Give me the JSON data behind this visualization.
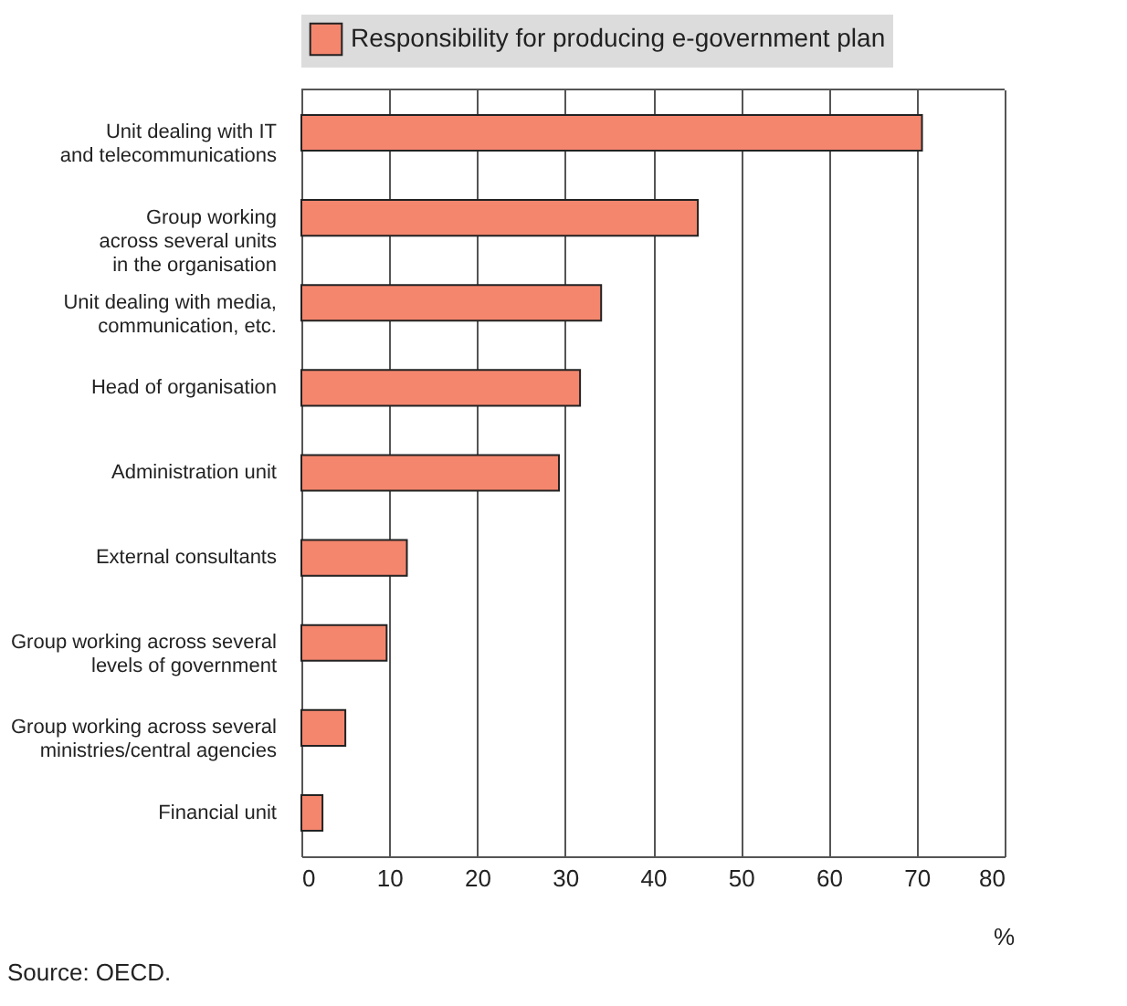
{
  "chart_data": {
    "type": "bar",
    "orientation": "horizontal",
    "categories": [
      "Unit dealing with IT\nand telecommunications",
      "Group working\nacross several units\nin the organisation",
      "Unit dealing with media,\ncommunication, etc.",
      "Head of organisation",
      "Administration unit",
      "External consultants",
      "Group working across several\nlevels of government",
      "Group working across several\nministries/central agencies",
      "Financial unit"
    ],
    "series": [
      {
        "name": "Responsibility for producing e-government plan",
        "color": "#f4866e",
        "values": [
          70.6,
          45.1,
          34.1,
          31.7,
          29.3,
          12.0,
          9.7,
          5.0,
          2.4
        ]
      }
    ],
    "xlabel": "%",
    "xlim": [
      0,
      80
    ],
    "xticks": [
      0,
      10,
      20,
      30,
      40,
      50,
      60,
      70,
      80
    ],
    "grid": "x",
    "legend": "top",
    "annotations": [
      "Source: OECD."
    ]
  }
}
